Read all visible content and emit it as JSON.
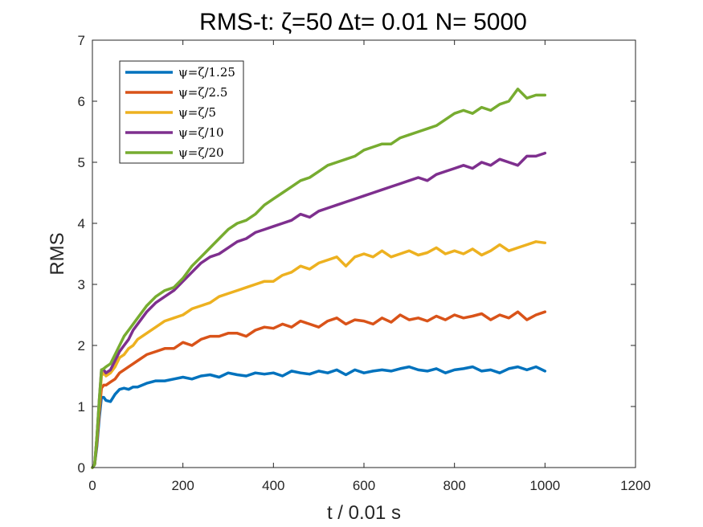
{
  "chart_data": {
    "type": "line",
    "title": "RMS-t:  ζ=50 Δt= 0.01 N= 5000",
    "xlabel": "t / 0.01 s",
    "ylabel": "RMS",
    "xlim": [
      0,
      1200
    ],
    "ylim": [
      0,
      7
    ],
    "xticks": [
      0,
      200,
      400,
      600,
      800,
      1000,
      1200
    ],
    "yticks": [
      0,
      1,
      2,
      3,
      4,
      5,
      6,
      7
    ],
    "grid": false,
    "legend_position": "top-left",
    "series": [
      {
        "name": "ψ=ζ/1.25",
        "color": "#0072BD",
        "x": [
          0,
          5,
          10,
          15,
          20,
          25,
          30,
          40,
          50,
          60,
          70,
          80,
          90,
          100,
          120,
          140,
          160,
          180,
          200,
          220,
          240,
          260,
          280,
          300,
          320,
          340,
          360,
          380,
          400,
          420,
          440,
          460,
          480,
          500,
          520,
          540,
          560,
          580,
          600,
          620,
          640,
          660,
          680,
          700,
          720,
          740,
          760,
          780,
          800,
          820,
          840,
          860,
          880,
          900,
          920,
          940,
          960,
          980,
          1000
        ],
        "y": [
          0,
          0.05,
          0.35,
          0.8,
          1.15,
          1.15,
          1.1,
          1.08,
          1.2,
          1.28,
          1.3,
          1.28,
          1.32,
          1.32,
          1.38,
          1.42,
          1.42,
          1.45,
          1.48,
          1.45,
          1.5,
          1.52,
          1.48,
          1.55,
          1.52,
          1.5,
          1.55,
          1.53,
          1.55,
          1.5,
          1.58,
          1.55,
          1.53,
          1.58,
          1.55,
          1.6,
          1.52,
          1.6,
          1.55,
          1.58,
          1.6,
          1.58,
          1.62,
          1.65,
          1.6,
          1.58,
          1.62,
          1.55,
          1.6,
          1.62,
          1.65,
          1.58,
          1.6,
          1.55,
          1.62,
          1.65,
          1.6,
          1.65,
          1.58
        ]
      },
      {
        "name": "ψ=ζ/2.5",
        "color": "#D95319",
        "x": [
          0,
          5,
          10,
          15,
          20,
          25,
          30,
          40,
          50,
          60,
          70,
          80,
          90,
          100,
          120,
          140,
          160,
          180,
          200,
          220,
          240,
          260,
          280,
          300,
          320,
          340,
          360,
          380,
          400,
          420,
          440,
          460,
          480,
          500,
          520,
          540,
          560,
          580,
          600,
          620,
          640,
          660,
          680,
          700,
          720,
          740,
          760,
          780,
          800,
          820,
          840,
          860,
          880,
          900,
          920,
          940,
          960,
          980,
          1000
        ],
        "y": [
          0,
          0.05,
          0.4,
          0.9,
          1.3,
          1.35,
          1.35,
          1.4,
          1.45,
          1.55,
          1.6,
          1.65,
          1.7,
          1.75,
          1.85,
          1.9,
          1.95,
          1.95,
          2.05,
          2.0,
          2.1,
          2.15,
          2.15,
          2.2,
          2.2,
          2.15,
          2.25,
          2.3,
          2.28,
          2.35,
          2.3,
          2.4,
          2.35,
          2.3,
          2.4,
          2.45,
          2.35,
          2.42,
          2.4,
          2.35,
          2.45,
          2.38,
          2.5,
          2.42,
          2.45,
          2.4,
          2.48,
          2.42,
          2.5,
          2.45,
          2.48,
          2.52,
          2.42,
          2.5,
          2.45,
          2.55,
          2.42,
          2.5,
          2.55
        ]
      },
      {
        "name": "ψ=ζ/5",
        "color": "#EDB120",
        "x": [
          0,
          5,
          10,
          15,
          20,
          25,
          30,
          40,
          50,
          60,
          70,
          80,
          90,
          100,
          120,
          140,
          160,
          180,
          200,
          220,
          240,
          260,
          280,
          300,
          320,
          340,
          360,
          380,
          400,
          420,
          440,
          460,
          480,
          500,
          520,
          540,
          560,
          580,
          600,
          620,
          640,
          660,
          680,
          700,
          720,
          740,
          760,
          780,
          800,
          820,
          840,
          860,
          880,
          900,
          920,
          940,
          960,
          980,
          1000
        ],
        "y": [
          0,
          0.05,
          0.5,
          1.0,
          1.5,
          1.55,
          1.5,
          1.55,
          1.65,
          1.8,
          1.85,
          1.95,
          2.0,
          2.1,
          2.2,
          2.3,
          2.4,
          2.45,
          2.5,
          2.6,
          2.65,
          2.7,
          2.8,
          2.85,
          2.9,
          2.95,
          3.0,
          3.05,
          3.05,
          3.15,
          3.2,
          3.3,
          3.25,
          3.35,
          3.4,
          3.45,
          3.3,
          3.45,
          3.5,
          3.45,
          3.55,
          3.45,
          3.5,
          3.55,
          3.48,
          3.52,
          3.6,
          3.5,
          3.55,
          3.5,
          3.58,
          3.48,
          3.55,
          3.65,
          3.55,
          3.6,
          3.65,
          3.7,
          3.68
        ]
      },
      {
        "name": "ψ=ζ/10",
        "color": "#7E2F8E",
        "x": [
          0,
          5,
          10,
          15,
          20,
          25,
          30,
          40,
          50,
          60,
          70,
          80,
          90,
          100,
          120,
          140,
          160,
          180,
          200,
          220,
          240,
          260,
          280,
          300,
          320,
          340,
          360,
          380,
          400,
          420,
          440,
          460,
          480,
          500,
          520,
          540,
          560,
          580,
          600,
          620,
          640,
          660,
          680,
          700,
          720,
          740,
          760,
          780,
          800,
          820,
          840,
          860,
          880,
          900,
          920,
          940,
          960,
          980,
          1000
        ],
        "y": [
          0,
          0.05,
          0.5,
          1.1,
          1.6,
          1.6,
          1.55,
          1.6,
          1.75,
          1.9,
          2.0,
          2.1,
          2.25,
          2.35,
          2.55,
          2.7,
          2.8,
          2.9,
          3.05,
          3.2,
          3.35,
          3.45,
          3.5,
          3.6,
          3.7,
          3.75,
          3.85,
          3.9,
          3.95,
          4.0,
          4.05,
          4.15,
          4.1,
          4.2,
          4.25,
          4.3,
          4.35,
          4.4,
          4.45,
          4.5,
          4.55,
          4.6,
          4.65,
          4.7,
          4.75,
          4.7,
          4.8,
          4.85,
          4.9,
          4.95,
          4.9,
          5.0,
          4.95,
          5.05,
          5.0,
          4.95,
          5.1,
          5.1,
          5.15
        ]
      },
      {
        "name": "ψ=ζ/20",
        "color": "#77AC30",
        "x": [
          0,
          5,
          10,
          15,
          20,
          25,
          30,
          40,
          50,
          60,
          70,
          80,
          90,
          100,
          120,
          140,
          160,
          180,
          200,
          220,
          240,
          260,
          280,
          300,
          320,
          340,
          360,
          380,
          400,
          420,
          440,
          460,
          480,
          500,
          520,
          540,
          560,
          580,
          600,
          620,
          640,
          660,
          680,
          700,
          720,
          740,
          760,
          780,
          800,
          820,
          840,
          860,
          880,
          900,
          920,
          940,
          960,
          980,
          1000
        ],
        "y": [
          0,
          0.05,
          0.5,
          1.1,
          1.6,
          1.62,
          1.65,
          1.7,
          1.85,
          2.0,
          2.15,
          2.25,
          2.35,
          2.45,
          2.65,
          2.8,
          2.9,
          2.95,
          3.1,
          3.3,
          3.45,
          3.6,
          3.75,
          3.9,
          4.0,
          4.05,
          4.15,
          4.3,
          4.4,
          4.5,
          4.6,
          4.7,
          4.75,
          4.85,
          4.95,
          5.0,
          5.05,
          5.1,
          5.2,
          5.25,
          5.3,
          5.3,
          5.4,
          5.45,
          5.5,
          5.55,
          5.6,
          5.7,
          5.8,
          5.85,
          5.8,
          5.9,
          5.85,
          5.95,
          6.0,
          6.2,
          6.05,
          6.1,
          6.1
        ]
      }
    ]
  }
}
